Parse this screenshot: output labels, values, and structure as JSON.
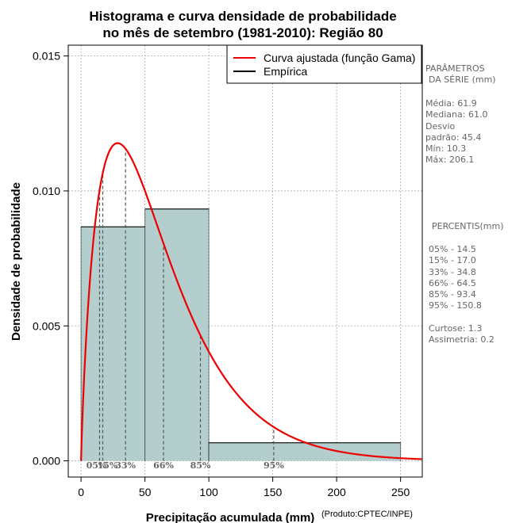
{
  "chart_data": {
    "type": "histogram",
    "title_line1": "Histograma e curva densidade de probabilidade",
    "title_line2": "no mês de setembro (1981-2010): Região 80",
    "xlabel": "Precipitação acumulada (mm)",
    "ylabel": "Densidade de probabilidade",
    "credit": "(Produto:CPTEC/INPE)",
    "xlim": [
      -10,
      267
    ],
    "ylim": [
      -0.0006,
      0.0154
    ],
    "x_ticks": [
      0,
      50,
      100,
      150,
      200,
      250
    ],
    "y_ticks": [
      0.0,
      0.005,
      0.01,
      0.015
    ],
    "y_tick_labels": [
      "0.000",
      "0.005",
      "0.010",
      "0.015"
    ],
    "grid": true,
    "bins": [
      {
        "start": 0,
        "end": 50,
        "density": 0.00867
      },
      {
        "start": 50,
        "end": 100,
        "density": 0.00933
      },
      {
        "start": 100,
        "end": 250,
        "density": 0.00067
      }
    ],
    "gamma_fit": {
      "shape": 1.859,
      "scale": 33.3
    },
    "legend": {
      "position": "top-right",
      "entries": [
        {
          "label": "Curva ajustada (função Gama)",
          "color": "#ee0000"
        },
        {
          "label": "Empírica",
          "color": "#000000"
        }
      ]
    },
    "percentile_markers": [
      {
        "label": "05%",
        "value": 14.5
      },
      {
        "label": "15%",
        "value": 17.0
      },
      {
        "label": "33%",
        "value": 34.8
      },
      {
        "label": "66%",
        "value": 64.5
      },
      {
        "label": "85%",
        "value": 93.4
      },
      {
        "label": "95%",
        "value": 150.8
      }
    ]
  },
  "side_panel": {
    "params_title_1": "PARÂMETROS",
    "params_title_2": "DA SÉRIE (mm)",
    "stats_lines": [
      "Média:  61.9",
      "Mediana:  61.0",
      "Desvio",
      "padrão:  45.4",
      "Mín:  10.3",
      "Máx:  206.1"
    ],
    "percentis_title": "PERCENTIS(mm)",
    "percentile_lines": [
      "05% -  14.5",
      "15% -  17.0",
      "33% -  34.8",
      "66% -  64.5",
      "85% -  93.4",
      "95% -  150.8"
    ],
    "shape_lines": [
      "Curtose:  1.3",
      "Assimetria:  0.2"
    ]
  },
  "colors": {
    "bar_fill": "#b4cece",
    "curve": "#ee0000",
    "grid": "#aaaaaa",
    "percentile_line": "#555555"
  }
}
